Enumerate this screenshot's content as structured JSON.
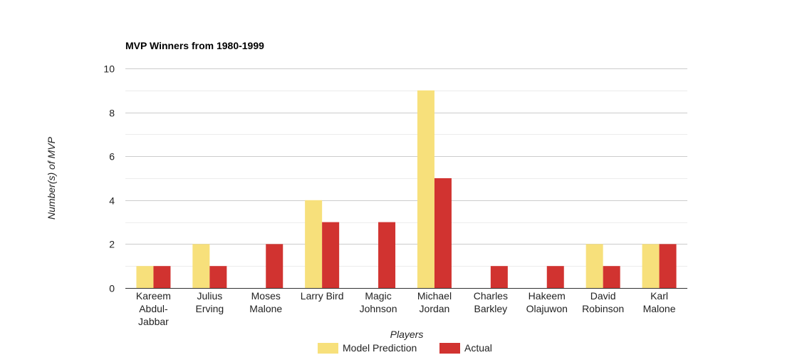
{
  "chart_data": {
    "type": "bar",
    "title": "MVP Winners from 1980-1999",
    "xlabel": "Players",
    "ylabel": "Number(s) of MVP",
    "ylim": [
      0,
      10
    ],
    "yticks": [
      0,
      2,
      4,
      6,
      8,
      10
    ],
    "grid": true,
    "legend_position": "bottom",
    "categories": [
      [
        "Kareem",
        "Abdul-",
        "Jabbar"
      ],
      [
        "Julius",
        "Erving"
      ],
      [
        "Moses",
        "Malone"
      ],
      [
        "Larry Bird"
      ],
      [
        "Magic",
        "Johnson"
      ],
      [
        "Michael",
        "Jordan"
      ],
      [
        "Charles",
        "Barkley"
      ],
      [
        "Hakeem",
        "Olajuwon"
      ],
      [
        "David",
        "Robinson"
      ],
      [
        "Karl",
        "Malone"
      ]
    ],
    "series": [
      {
        "name": "Model Prediction",
        "color": "#f7e07b",
        "values": [
          1,
          2,
          0,
          4,
          0,
          9,
          0,
          0,
          2,
          2
        ]
      },
      {
        "name": "Actual",
        "color": "#d13330",
        "values": [
          1,
          1,
          2,
          3,
          3,
          5,
          1,
          1,
          1,
          2
        ]
      }
    ]
  }
}
